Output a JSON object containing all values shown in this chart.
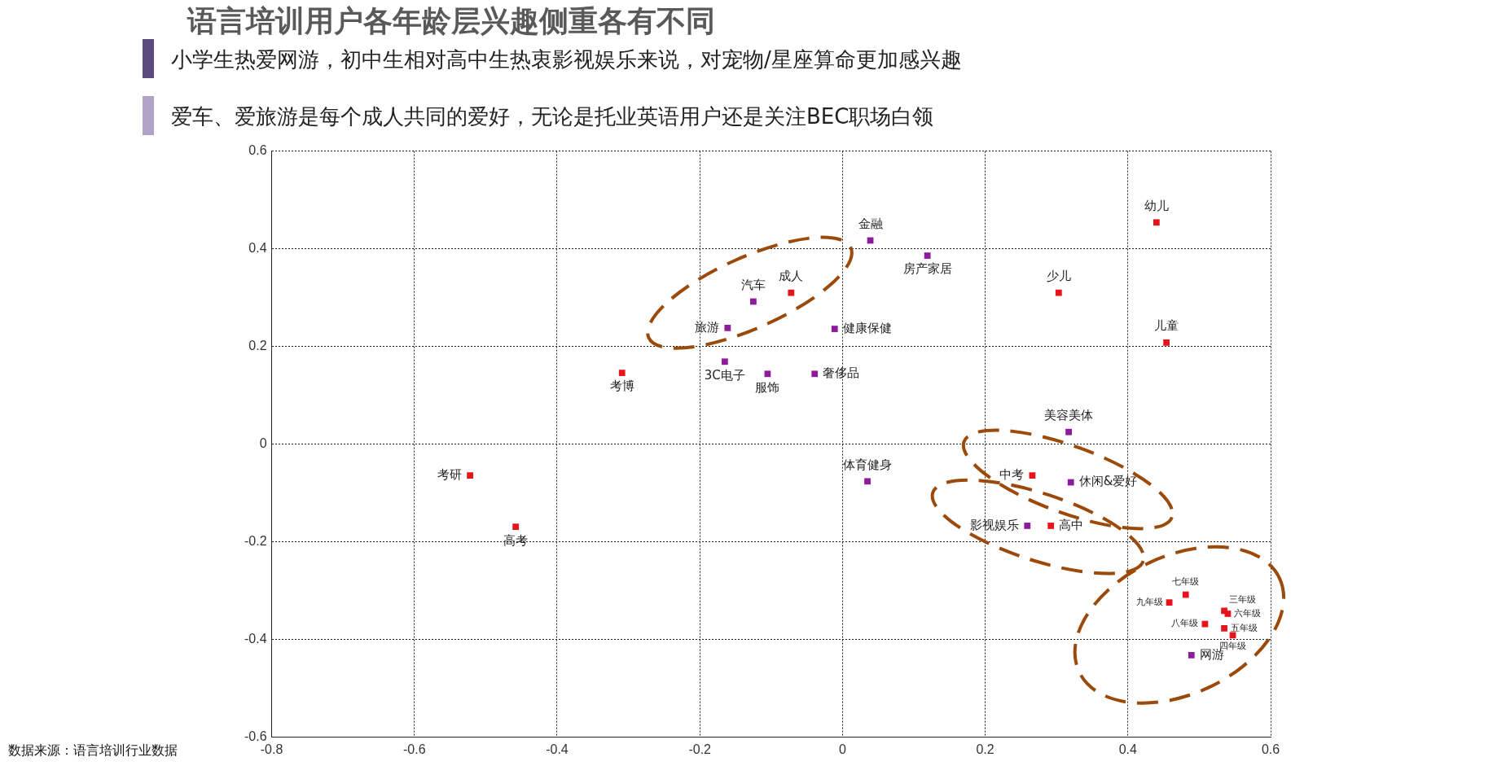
{
  "chart_data": {
    "type": "scatter",
    "title": "语言培训用户各年龄层兴趣侧重各有不同",
    "subtitle": "小学生热爱网游，初中生相对高中生热衷影视娱乐来说，对宠物/星座算命更加感兴趣",
    "xlim": [
      -0.8,
      0.6
    ],
    "xticks": [
      -0.8,
      -0.6,
      -0.4,
      -0.2,
      0,
      0.2,
      0.4,
      0.6
    ],
    "ylim": [
      -0.6,
      0.6
    ],
    "yticks": [
      -0.6,
      -0.4,
      -0.2,
      0,
      0.2,
      0.4,
      0.6
    ],
    "grid": true,
    "legend": false,
    "marker": "square",
    "series": [
      {
        "color": "#e8141c",
        "x": [
          0.44,
          -0.072,
          0.303,
          0.454,
          -0.309,
          0.266,
          -0.522,
          0.292,
          -0.458,
          0.481,
          0.458,
          0.535,
          0.508,
          0.54,
          0.535,
          0.547
        ],
        "values": [
          0.454,
          0.31,
          0.31,
          0.208,
          0.146,
          -0.064,
          -0.064,
          -0.167,
          -0.169,
          -0.308,
          -0.324,
          -0.341,
          -0.368,
          -0.347,
          -0.377,
          -0.391
        ]
      },
      {
        "color": "#8e1a9c",
        "x": [
          0.039,
          0.119,
          -0.125,
          -0.161,
          -0.011,
          -0.165,
          -0.105,
          -0.039,
          0.317,
          0.32,
          0.035,
          0.259,
          0.489
        ],
        "values": [
          0.417,
          0.386,
          0.292,
          0.238,
          0.236,
          0.169,
          0.144,
          0.144,
          0.025,
          -0.078,
          -0.076,
          -0.167,
          -0.432
        ]
      }
    ],
    "annotations": [
      "爱车、爱旅游是每个成人共同的爱好，无论是托业英语用户还是关注BEC职场白领",
      "数据来源：语言培训行业数据",
      {
        "text": "幼儿",
        "x": 0.44,
        "y": 0.454
      },
      {
        "text": "金融",
        "x": 0.039,
        "y": 0.417
      },
      {
        "text": "房产家居",
        "x": 0.119,
        "y": 0.386
      },
      {
        "text": "成人",
        "x": -0.072,
        "y": 0.31
      },
      {
        "text": "汽车",
        "x": -0.125,
        "y": 0.292
      },
      {
        "text": "少儿",
        "x": 0.303,
        "y": 0.31
      },
      {
        "text": "旅游",
        "x": -0.161,
        "y": 0.238
      },
      {
        "text": "健康保健",
        "x": -0.011,
        "y": 0.236
      },
      {
        "text": "儿童",
        "x": 0.454,
        "y": 0.208
      },
      {
        "text": "3C电子",
        "x": -0.165,
        "y": 0.169
      },
      {
        "text": "考博",
        "x": -0.309,
        "y": 0.146
      },
      {
        "text": "服饰",
        "x": -0.105,
        "y": 0.144
      },
      {
        "text": "奢侈品",
        "x": -0.039,
        "y": 0.144
      },
      {
        "text": "美容美体",
        "x": 0.317,
        "y": 0.025
      },
      {
        "text": "中考",
        "x": 0.266,
        "y": -0.064
      },
      {
        "text": "休闲&爱好",
        "x": 0.32,
        "y": -0.078
      },
      {
        "text": "考研",
        "x": -0.522,
        "y": -0.064
      },
      {
        "text": "体育健身",
        "x": 0.035,
        "y": -0.076
      },
      {
        "text": "影视娱乐",
        "x": 0.259,
        "y": -0.167
      },
      {
        "text": "高中",
        "x": 0.292,
        "y": -0.167
      },
      {
        "text": "高考",
        "x": -0.458,
        "y": -0.169
      },
      {
        "text": "网游",
        "x": 0.489,
        "y": -0.432
      },
      {
        "text": "七年级",
        "x": 0.481,
        "y": -0.308
      },
      {
        "text": "九年级",
        "x": 0.458,
        "y": -0.324
      },
      {
        "text": "三年级",
        "x": 0.535,
        "y": -0.341
      },
      {
        "text": "八年级",
        "x": 0.508,
        "y": -0.368
      },
      {
        "text": "六年级",
        "x": 0.54,
        "y": -0.347
      },
      {
        "text": "五年级",
        "x": 0.535,
        "y": -0.377
      },
      {
        "text": "四年级",
        "x": 0.547,
        "y": -0.391
      }
    ]
  }
}
